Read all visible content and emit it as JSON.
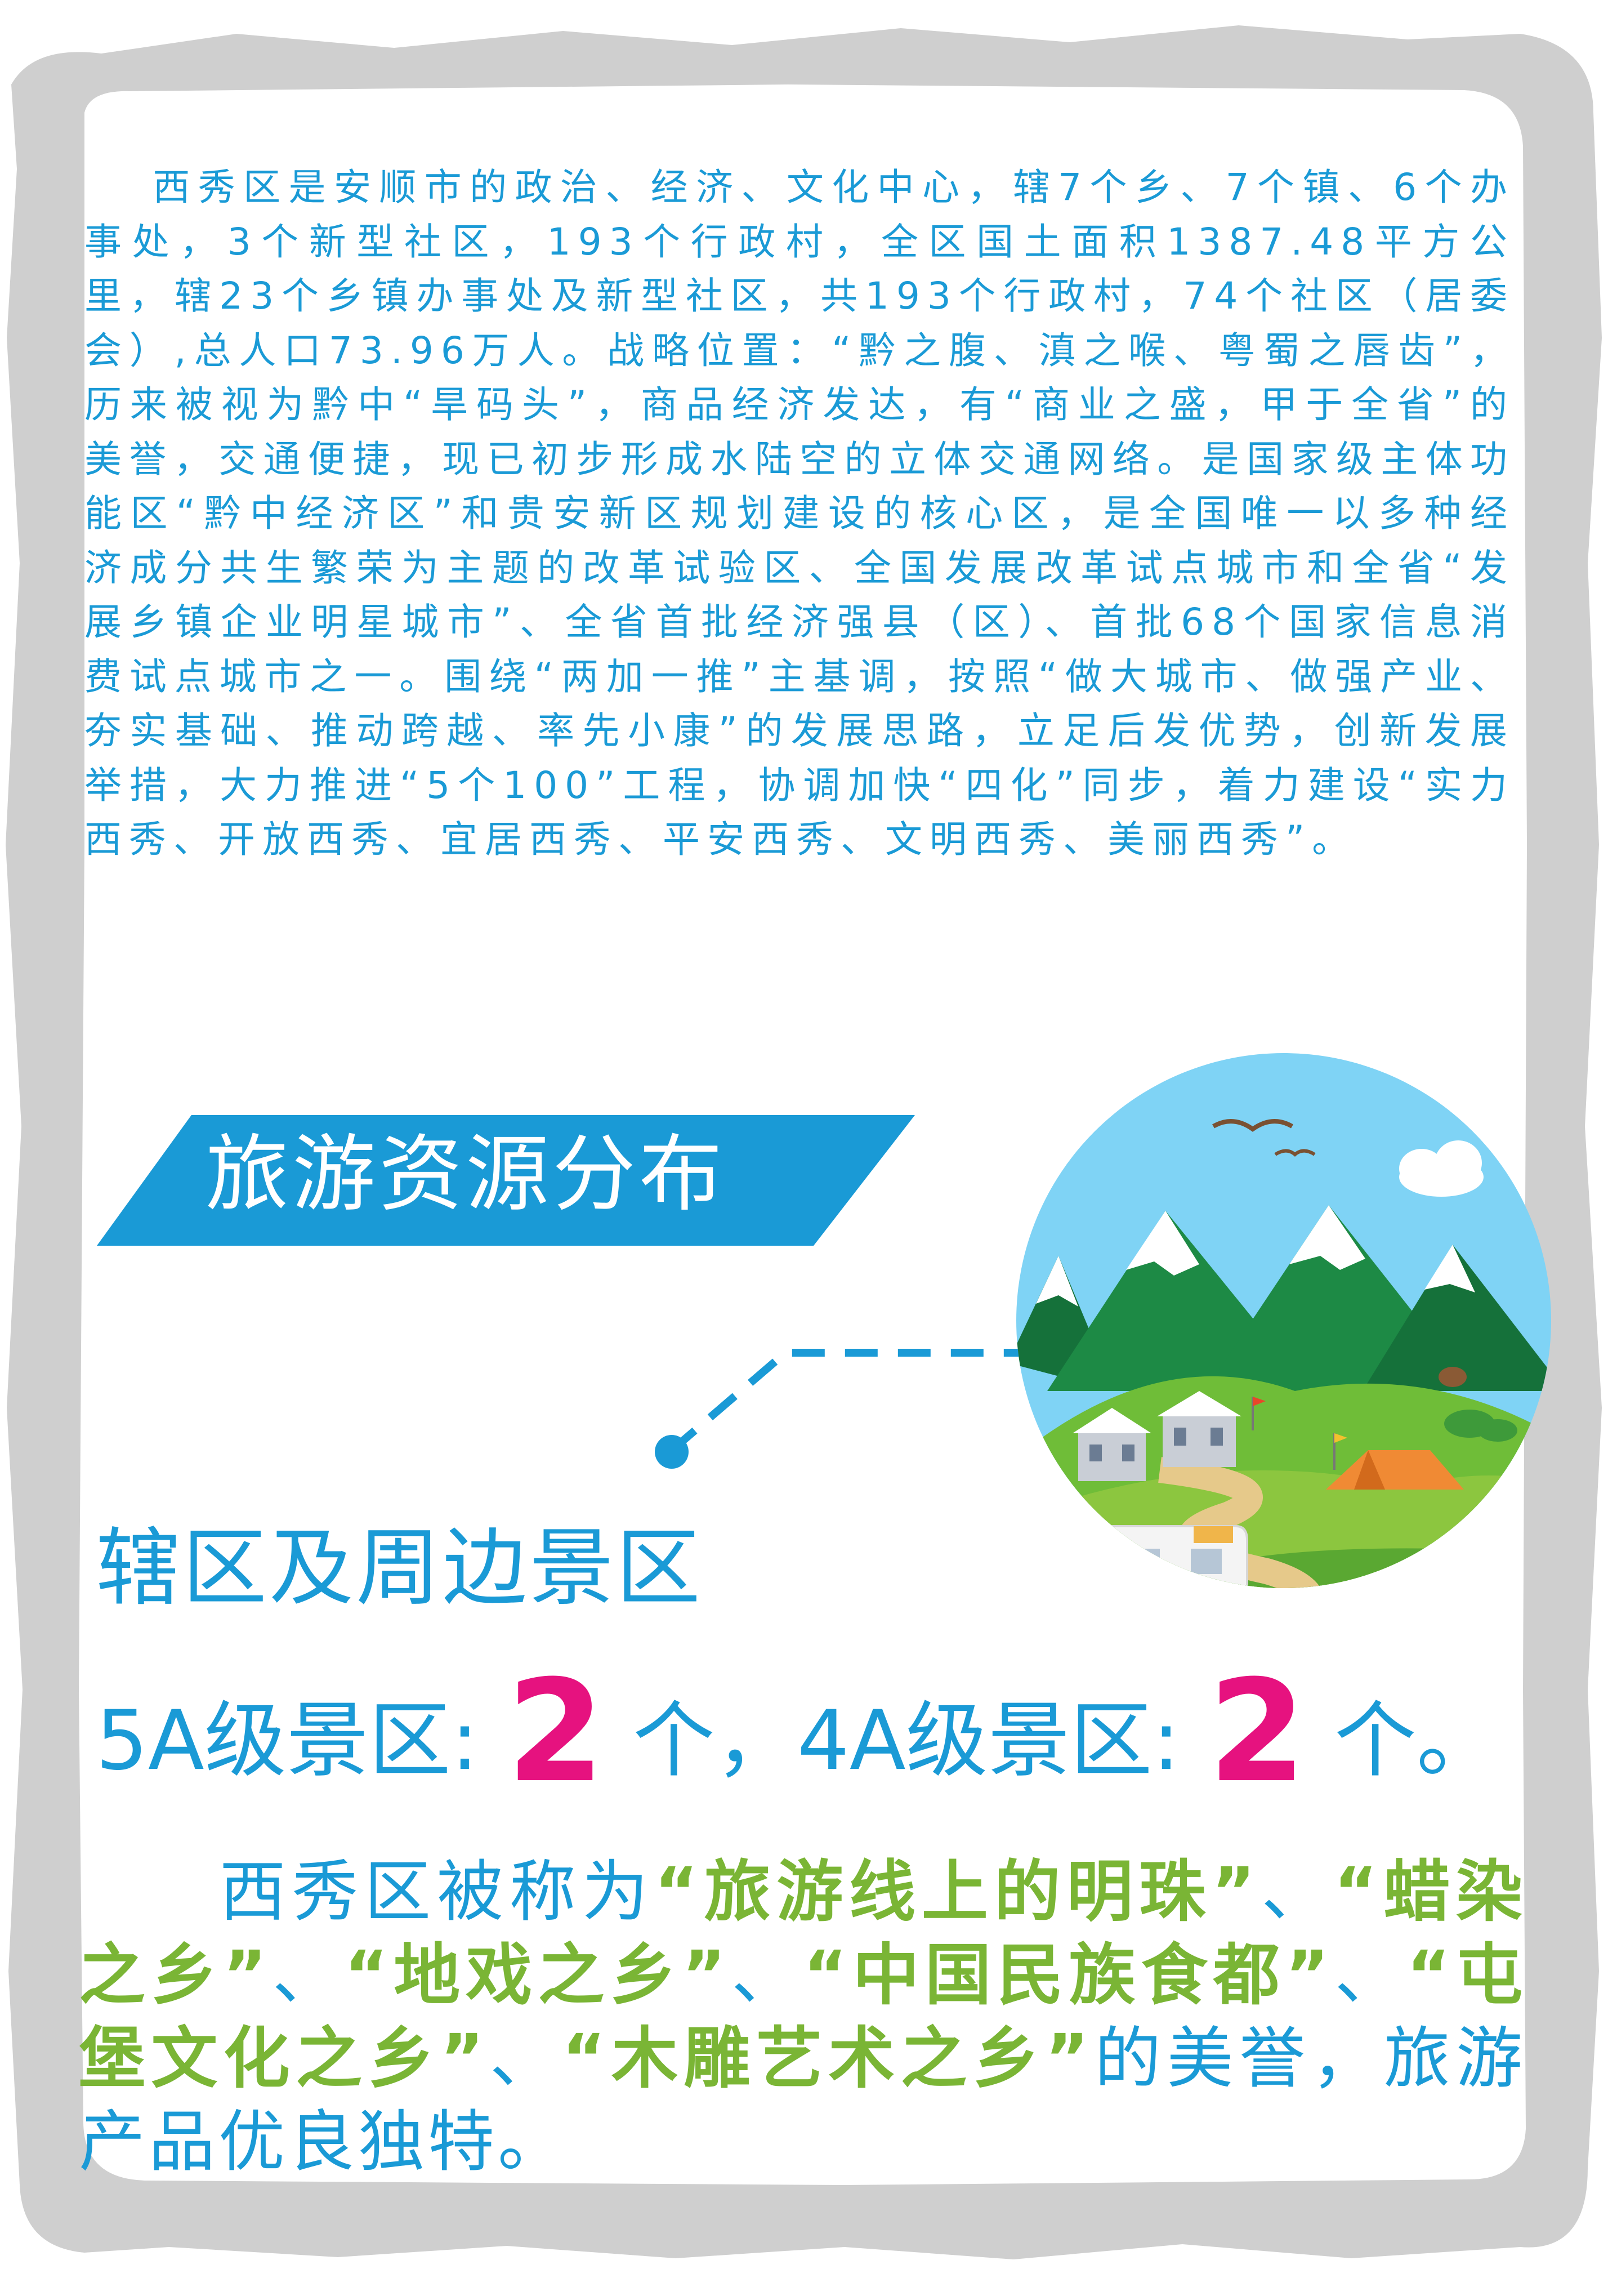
{
  "intro_text": "西秀区是安顺市的政治、经济、文化中心，辖7个乡、7个镇、6个办事处，3个新型社区，193个行政村，全区国土面积1387.48平方公里，辖23个乡镇办事处及新型社区，共193个行政村，74个社区（居委会）,总人口73.96万人。战略位置：“黔之腹、滇之喉、粤蜀之唇齿”，历来被视为黔中“旱码头”，商品经济发达，有“商业之盛，甲于全省”的美誉，交通便捷，现已初步形成水陆空的立体交通网络。是国家级主体功能区“黔中经济区”和贵安新区规划建设的核心区，是全国唯一以多种经济成分共生繁荣为主题的改革试验区、全国发展改革试点城市和全省“发展乡镇企业明星城市”、全省首批经济强县（区）、首批68个国家信息消费试点城市之一。围绕“两加一推”主基调，按照“做大城市、做强产业、夯实基础、推动跨越、率先小康”的发展思路，立足后发优势，创新发展举措，大力推进“5个100”工程，协调加快“四化”同步，着力建设“实力西秀、开放西秀、宜居西秀、平安西秀、文明西秀、美丽西秀”。",
  "banner_title": "旅游资源分布",
  "subheading": "辖区及周边景区",
  "stats": {
    "label_5a": "5A级景区:",
    "count_5a": "2",
    "unit_5a": "个，",
    "label_4a": "4A级景区:",
    "count_4a": "2",
    "unit_4a": "个。"
  },
  "outro": {
    "lead": "西秀区被称为",
    "h1": "“旅游线上的明珠”",
    "s1": "、",
    "h2": "“蜡染之乡”",
    "s2": "、",
    "h3": "“地戏之乡”",
    "s3": "、",
    "h4": "“中国民族食都”",
    "s4": "、",
    "h5": "“屯堡文化之乡”",
    "s5": "、",
    "h6": "“木雕艺术之乡”",
    "tail": "的美誉，旅游产品优良独特。"
  },
  "colors": {
    "body_text": "#1a9ad6",
    "banner_bg": "#1a9ad6",
    "number_accent": "#e6127f",
    "highlight_green": "#7ab535",
    "frame_grey": "#cfcfcf"
  }
}
